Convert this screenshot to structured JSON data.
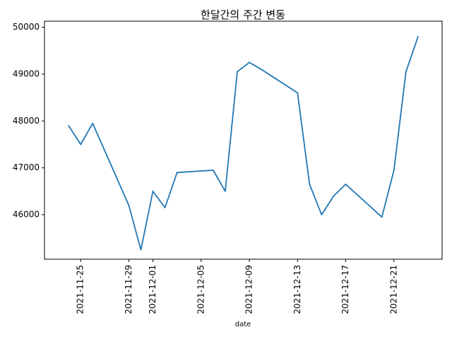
{
  "chart_data": {
    "type": "line",
    "title": "한달간의 주간 변동",
    "xlabel": "date",
    "ylabel": "",
    "grid": false,
    "x_tick_labels": [
      "2021-11-25",
      "2021-11-29",
      "2021-12-01",
      "2021-12-05",
      "2021-12-09",
      "2021-12-13",
      "2021-12-17",
      "2021-12-21"
    ],
    "y_tick_labels": [
      "46000",
      "47000",
      "48000",
      "49000",
      "50000"
    ],
    "y_ticks": [
      46000,
      47000,
      48000,
      49000,
      50000
    ],
    "x_ticks": [
      "2021-11-25",
      "2021-11-29",
      "2021-12-01",
      "2021-12-05",
      "2021-12-09",
      "2021-12-13",
      "2021-12-17",
      "2021-12-21"
    ],
    "xlim": [
      "2021-11-22",
      "2021-12-25"
    ],
    "ylim": [
      45050,
      50130
    ],
    "series": [
      {
        "color": "#1f77b4",
        "x": [
          "2021-11-24",
          "2021-11-25",
          "2021-11-26",
          "2021-11-29",
          "2021-11-30",
          "2021-12-01",
          "2021-12-02",
          "2021-12-03",
          "2021-12-06",
          "2021-12-07",
          "2021-12-08",
          "2021-12-09",
          "2021-12-10",
          "2021-12-13",
          "2021-12-14",
          "2021-12-15",
          "2021-12-16",
          "2021-12-17",
          "2021-12-20",
          "2021-12-21",
          "2021-12-22",
          "2021-12-23"
        ],
        "y": [
          47900,
          47500,
          47950,
          46200,
          45250,
          46500,
          46150,
          46900,
          46950,
          46500,
          49050,
          49250,
          49100,
          48600,
          46650,
          46000,
          46400,
          46650,
          45950,
          46950,
          49050,
          49800
        ]
      }
    ]
  }
}
